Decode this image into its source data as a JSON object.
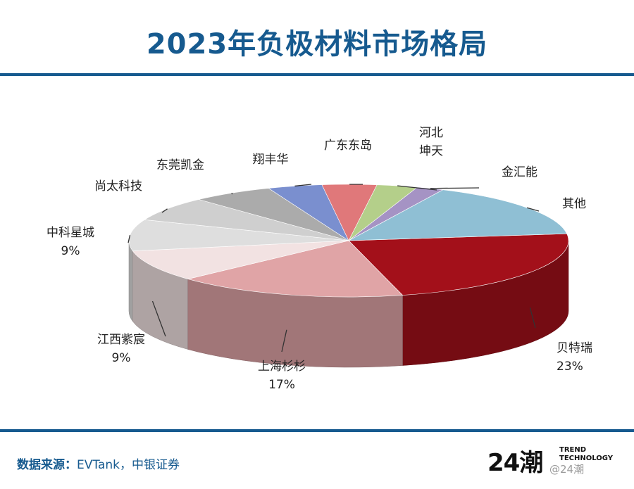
{
  "title": "2023年负极材料市场格局",
  "chart_data": {
    "type": "pie",
    "title": "2023年负极材料市场格局",
    "slices": [
      {
        "label": "贝特瑞",
        "value": 23,
        "value_label": "23%",
        "color": "#a3101a"
      },
      {
        "label": "上海杉杉",
        "value": 17,
        "value_label": "17%",
        "color": "#e0a4a6"
      },
      {
        "label": "江西紫宸",
        "value": 9,
        "value_label": "9%",
        "color": "#f2e2e2"
      },
      {
        "label": "中科星城",
        "value": 9,
        "value_label": "9%",
        "color": "#dedede"
      },
      {
        "label": "尚太科技",
        "value": 7,
        "value_label": "",
        "color": "#cfcfcf"
      },
      {
        "label": "东莞凯金",
        "value": 6,
        "value_label": "",
        "color": "#ababab"
      },
      {
        "label": "翔丰华",
        "value": 4,
        "value_label": "",
        "color": "#7a8fcf"
      },
      {
        "label": "广东东岛",
        "value": 4,
        "value_label": "",
        "color": "#e0787a"
      },
      {
        "label": "河北\n坤天",
        "value": 3,
        "value_label": "",
        "color": "#b4cf8a"
      },
      {
        "label": "金汇能",
        "value": 2,
        "value_label": "",
        "color": "#a593c4"
      },
      {
        "label": "其他",
        "value": 16,
        "value_label": "",
        "color": "#8fbfd4"
      }
    ],
    "legend": "none",
    "style": "3d-tilted"
  },
  "footer": {
    "source_label": "数据来源：",
    "source_text": "EVTank，中银证券"
  },
  "brand": {
    "number": "24潮",
    "line1": "TREND",
    "line2": "TECHNOLOGY",
    "watermark": "@24潮"
  }
}
